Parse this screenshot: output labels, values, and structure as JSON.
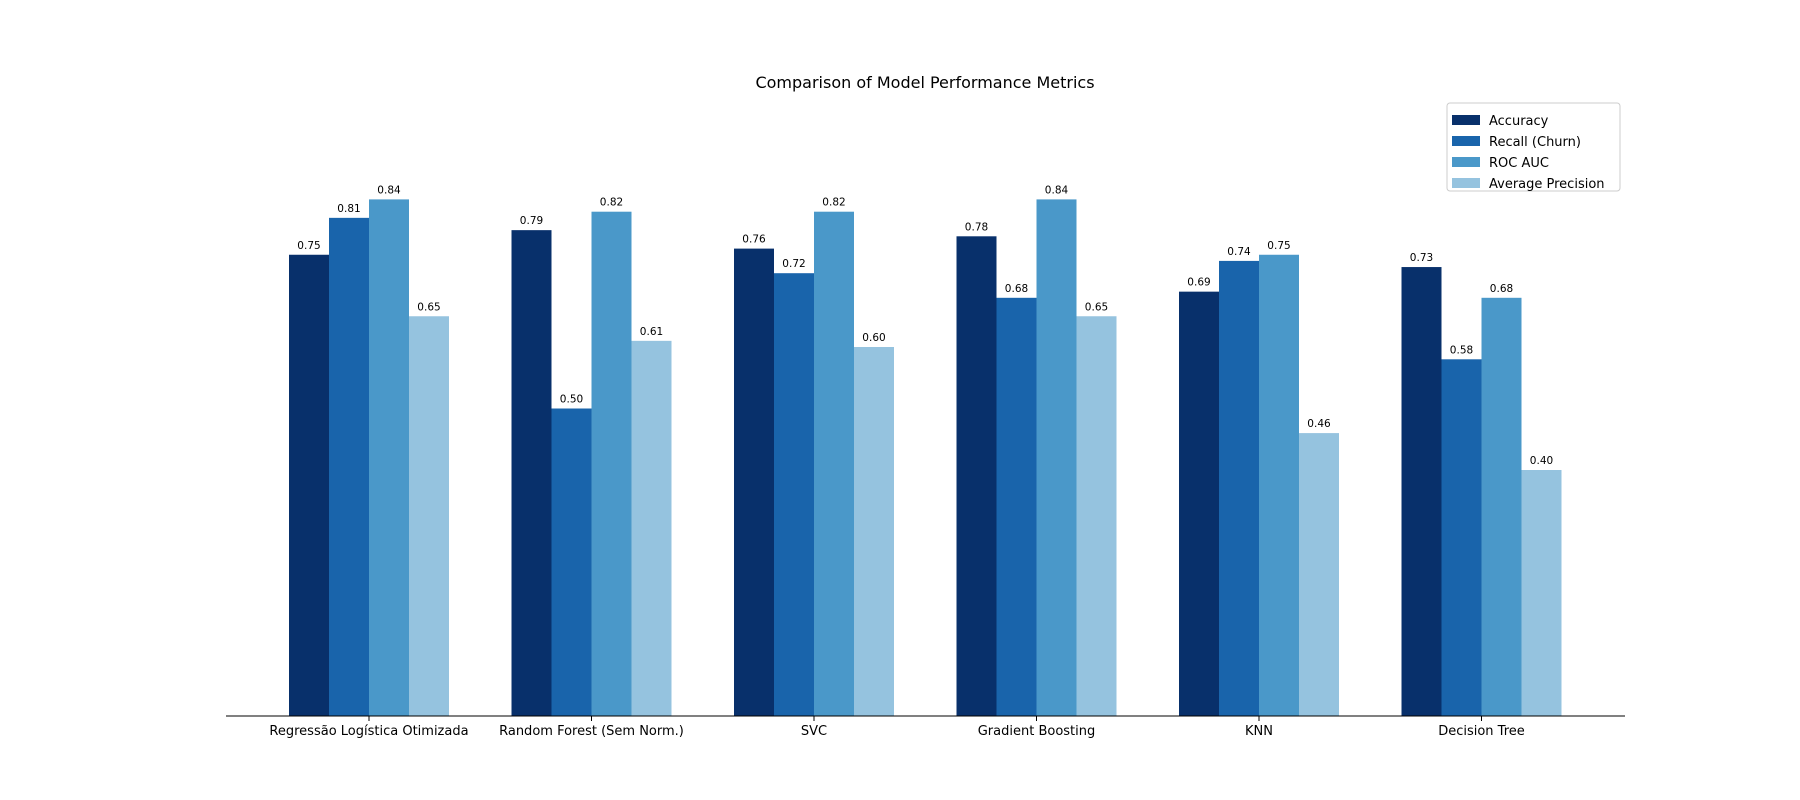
{
  "chart_data": {
    "type": "bar",
    "title": "Comparison of Model Performance Metrics",
    "xlabel": "",
    "ylabel": "",
    "ylim": [
      0,
      0.9
    ],
    "grid": false,
    "legend_position": "top-right",
    "categories": [
      "Regressão Logística Otimizada",
      "Random Forest (Sem Norm.)",
      "SVC",
      "Gradient Boosting",
      "KNN",
      "Decision Tree"
    ],
    "series": [
      {
        "name": "Accuracy",
        "color": "#08306b",
        "values": [
          0.75,
          0.79,
          0.76,
          0.78,
          0.69,
          0.73
        ]
      },
      {
        "name": "Recall (Churn)",
        "color": "#1964ab",
        "values": [
          0.81,
          0.5,
          0.72,
          0.68,
          0.74,
          0.58
        ]
      },
      {
        "name": "ROC AUC",
        "color": "#4a98c9",
        "values": [
          0.84,
          0.82,
          0.82,
          0.84,
          0.75,
          0.68
        ]
      },
      {
        "name": "Average Precision",
        "color": "#95c3df",
        "values": [
          0.65,
          0.61,
          0.6,
          0.65,
          0.46,
          0.4
        ]
      }
    ],
    "value_labels": [
      [
        "0.75",
        "0.79",
        "0.76",
        "0.78",
        "0.69",
        "0.73"
      ],
      [
        "0.81",
        "0.50",
        "0.72",
        "0.68",
        "0.74",
        "0.58"
      ],
      [
        "0.84",
        "0.82",
        "0.82",
        "0.84",
        "0.75",
        "0.68"
      ],
      [
        "0.65",
        "0.61",
        "0.60",
        "0.65",
        "0.46",
        "0.40"
      ]
    ]
  }
}
